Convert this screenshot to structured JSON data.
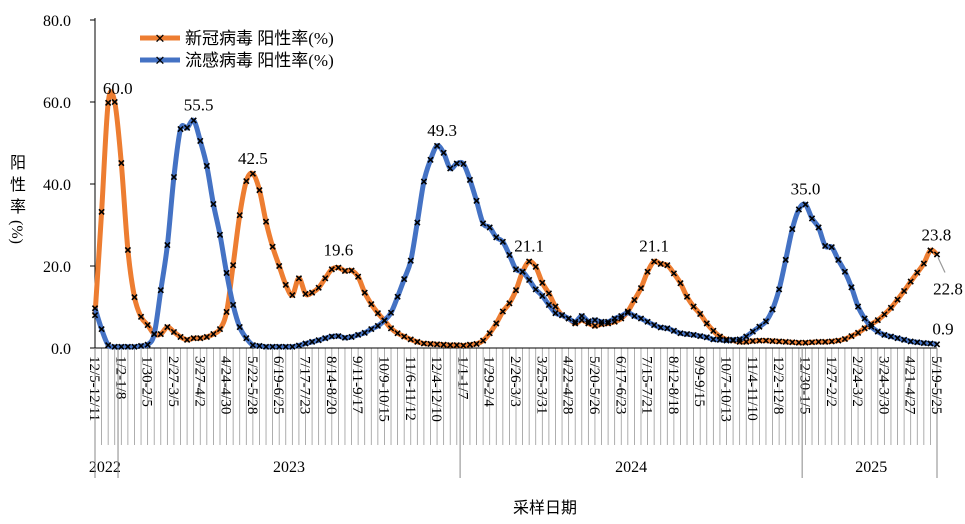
{
  "chart_data": {
    "type": "line",
    "xlabel": "采样日期",
    "ylabel": "阳性率(%)",
    "ylim": [
      0,
      80
    ],
    "y_ticks": [
      "0.0",
      "20.0",
      "40.0",
      "60.0",
      "80.0"
    ],
    "grid": false,
    "legend_position": "top-left",
    "x_tick_labels": [
      "12/5-12/11",
      "1/2-1/8",
      "1/30-2/5",
      "2/27-3/5",
      "3/27-4/2",
      "4/24-4/30",
      "5/22-5/28",
      "6/19-6/25",
      "7/17-7/23",
      "8/14-8/20",
      "9/11-9/17",
      "10/9-10/15",
      "11/6-11/12",
      "12/4-12/10",
      "1/1-1/7",
      "1/29-2/4",
      "2/26-3/3",
      "3/25-3/31",
      "4/22-4/28",
      "5/20-5/26",
      "6/17-6/23",
      "7/15-7/21",
      "8/12-8/18",
      "9/9-9/15",
      "10/7-10/13",
      "11/4-11/10",
      "12/2-12/8",
      "12/30-1/5",
      "1/27-2/2",
      "2/24-3/2",
      "3/24-3/30",
      "4/21-4/27",
      "5/19-5/25"
    ],
    "x_tick_interval_weeks": 4,
    "year_groups": [
      {
        "label": "2022",
        "weeks": 4
      },
      {
        "label": "2023",
        "weeks": 52
      },
      {
        "label": "2024",
        "weeks": 52
      },
      {
        "label": "2025",
        "weeks": 21
      }
    ],
    "series": [
      {
        "name": "新冠病毒 阳性率(%)",
        "color": "#ED7D31",
        "values": [
          8.0,
          33.2,
          59.8,
          60.0,
          45.1,
          23.9,
          12.4,
          7.6,
          5.6,
          3.4,
          3.4,
          5.1,
          3.9,
          2.7,
          2.0,
          2.4,
          2.4,
          2.7,
          3.4,
          4.6,
          8.8,
          20.2,
          32.4,
          40.7,
          42.5,
          38.5,
          30.8,
          24.7,
          20.0,
          15.4,
          12.9,
          17.0,
          13.2,
          13.5,
          14.7,
          17.0,
          19.2,
          19.6,
          18.8,
          18.9,
          17.4,
          13.5,
          10.7,
          8.5,
          6.7,
          4.8,
          3.6,
          2.8,
          2.1,
          1.5,
          1.1,
          1.0,
          0.9,
          0.8,
          0.7,
          0.7,
          0.6,
          0.8,
          1.0,
          1.8,
          3.6,
          6.0,
          8.9,
          10.9,
          14.1,
          18.6,
          21.1,
          19.8,
          15.9,
          13.3,
          10.1,
          8.0,
          7.2,
          6.0,
          6.8,
          6.0,
          5.4,
          5.8,
          6.0,
          6.4,
          7.2,
          8.9,
          11.7,
          14.6,
          18.6,
          21.1,
          20.5,
          20.2,
          18.2,
          15.8,
          12.5,
          10.1,
          8.3,
          6.0,
          4.2,
          2.8,
          2.1,
          1.8,
          1.5,
          1.5,
          1.7,
          1.8,
          1.8,
          1.7,
          1.6,
          1.5,
          1.4,
          1.3,
          1.3,
          1.4,
          1.5,
          1.5,
          1.6,
          1.8,
          2.2,
          2.9,
          3.7,
          4.8,
          5.8,
          6.8,
          8.2,
          9.8,
          11.8,
          13.9,
          16.2,
          18.4,
          20.6,
          23.8,
          22.8
        ]
      },
      {
        "name": "流感病毒 阳性率(%)",
        "color": "#4472C4",
        "values": [
          9.7,
          4.6,
          0.7,
          0.3,
          0.3,
          0.3,
          0.3,
          0.5,
          0.8,
          3.4,
          14.1,
          25.1,
          41.7,
          53.4,
          53.7,
          55.5,
          50.5,
          44.4,
          35.1,
          27.6,
          18.3,
          10.5,
          5.1,
          2.4,
          0.7,
          0.5,
          0.3,
          0.3,
          0.3,
          0.3,
          0.3,
          0.6,
          1.1,
          1.5,
          1.9,
          2.4,
          2.8,
          2.9,
          2.5,
          2.7,
          3.2,
          3.7,
          4.6,
          5.4,
          6.7,
          8.6,
          12.5,
          16.8,
          21.3,
          30.6,
          40.6,
          45.9,
          49.3,
          47.6,
          43.8,
          45.0,
          44.9,
          41.0,
          35.9,
          30.4,
          29.4,
          27.0,
          25.9,
          22.7,
          19.2,
          18.6,
          16.6,
          14.3,
          12.7,
          10.5,
          8.5,
          8.0,
          7.2,
          6.4,
          7.8,
          6.5,
          6.8,
          6.4,
          6.4,
          7.2,
          7.8,
          8.6,
          7.8,
          7.2,
          6.4,
          5.6,
          5.0,
          4.8,
          4.2,
          3.6,
          3.4,
          3.2,
          2.9,
          2.6,
          2.1,
          2.0,
          1.8,
          2.0,
          2.1,
          2.8,
          4.0,
          5.2,
          6.5,
          9.4,
          14.3,
          21.5,
          29.0,
          33.8,
          35.0,
          31.6,
          29.4,
          24.9,
          24.6,
          21.5,
          18.6,
          14.8,
          10.1,
          7.2,
          5.2,
          4.0,
          3.2,
          2.8,
          2.4,
          2.0,
          1.6,
          1.4,
          1.2,
          1.1,
          0.9
        ]
      }
    ],
    "data_labels": [
      {
        "series": 0,
        "week_index": 3,
        "text": "60.0"
      },
      {
        "series": 1,
        "week_index": 15,
        "text": "55.5"
      },
      {
        "series": 0,
        "week_index": 24,
        "text": "42.5"
      },
      {
        "series": 0,
        "week_index": 37,
        "text": "19.6"
      },
      {
        "series": 1,
        "week_index": 52,
        "text": "49.3"
      },
      {
        "series": 0,
        "week_index": 66,
        "text": "21.1"
      },
      {
        "series": 0,
        "week_index": 85,
        "text": "21.1"
      },
      {
        "series": 1,
        "week_index": 108,
        "text": "35.0"
      },
      {
        "series": 0,
        "week_index": 127,
        "text": "23.8"
      },
      {
        "series": 0,
        "week_index": 128,
        "text": "22.8"
      },
      {
        "series": 1,
        "week_index": 128,
        "text": "0.9"
      }
    ]
  }
}
